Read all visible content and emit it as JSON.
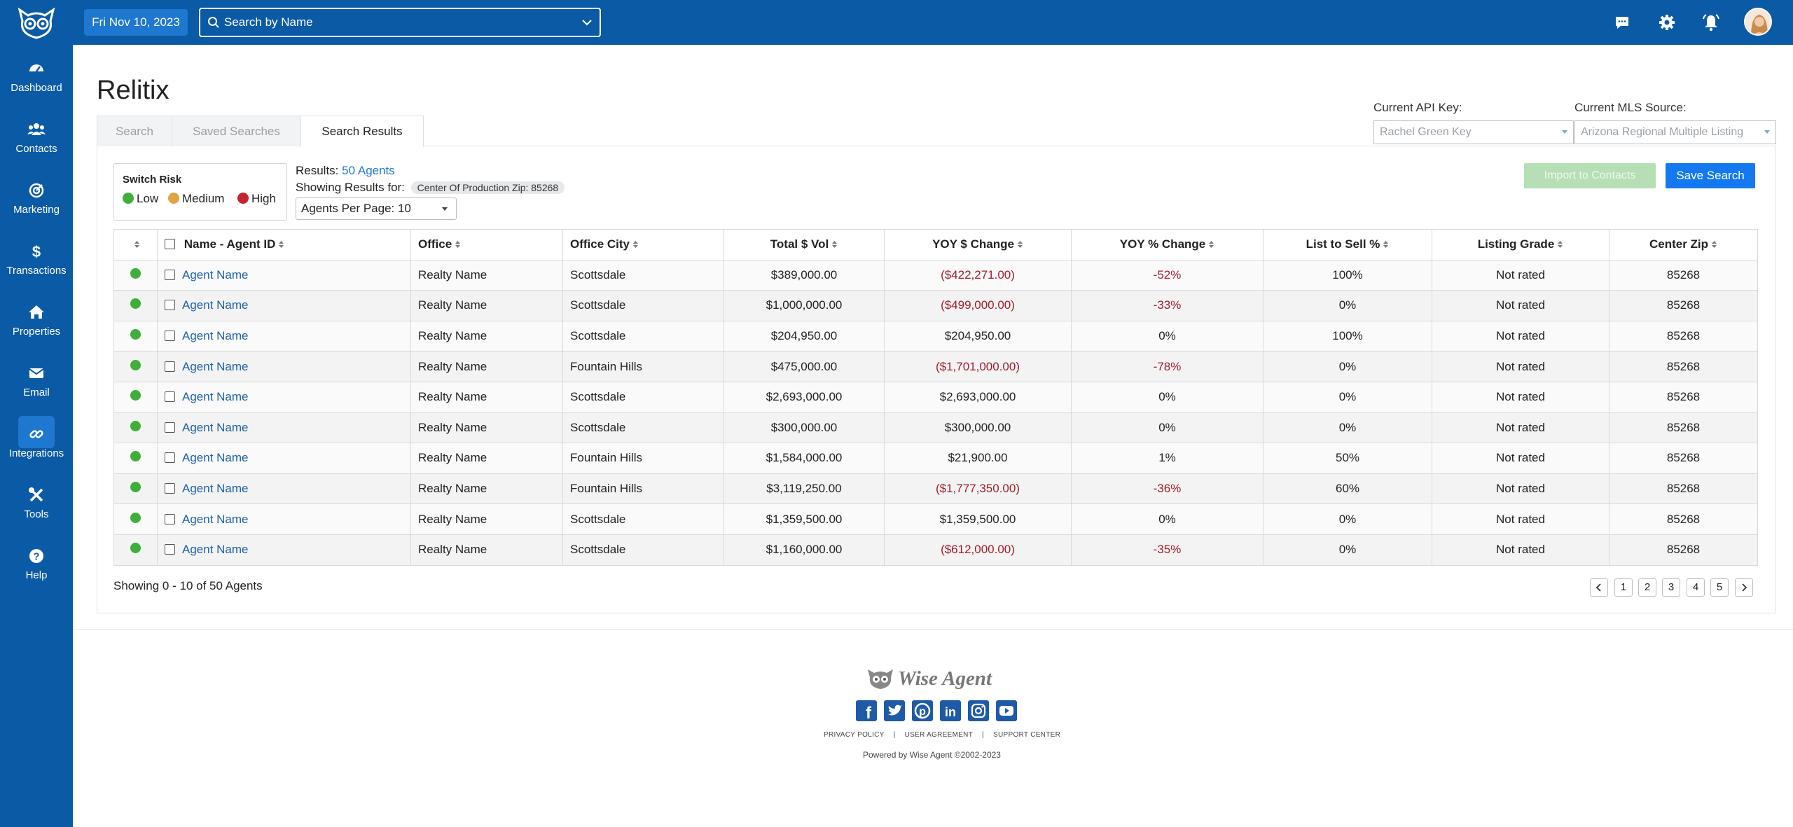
{
  "topbar": {
    "date": "Fri Nov 10, 2023",
    "search_placeholder": "Search by Name"
  },
  "sidebar": {
    "items": [
      {
        "label": "Dashboard",
        "icon": "dashboard-icon"
      },
      {
        "label": "Contacts",
        "icon": "contacts-icon"
      },
      {
        "label": "Marketing",
        "icon": "marketing-icon"
      },
      {
        "label": "Transactions",
        "icon": "dollar-icon"
      },
      {
        "label": "Properties",
        "icon": "home-icon"
      },
      {
        "label": "Email",
        "icon": "envelope-icon"
      },
      {
        "label": "Integrations",
        "icon": "link-icon"
      },
      {
        "label": "Tools",
        "icon": "tools-icon"
      },
      {
        "label": "Help",
        "icon": "help-icon"
      }
    ],
    "active": "Integrations"
  },
  "page": {
    "title": "Relitix",
    "tabs": [
      "Search",
      "Saved Searches",
      "Search Results"
    ],
    "active_tab": "Search Results",
    "api_key_label": "Current API Key:",
    "api_key_value": "Rachel Green Key",
    "mls_label": "Current MLS Source:",
    "mls_value": "Arizona Regional Multiple Listing"
  },
  "risk": {
    "title": "Switch Risk",
    "levels": [
      {
        "label": "Low",
        "color": "#3fae3a"
      },
      {
        "label": "Medium",
        "color": "#e0a544"
      },
      {
        "label": "High",
        "color": "#c4242f"
      }
    ]
  },
  "results": {
    "results_label": "Results:",
    "results_count": "50 Agents",
    "showing_label": "Showing Results for:",
    "filter_pill": "Center Of Production Zip: 85268",
    "per_page": "Agents Per Page: 10",
    "import_label": "Import to Contacts",
    "save_label": "Save Search"
  },
  "table": {
    "headers": [
      "Name - Agent ID",
      "Office",
      "Office City",
      "Total $ Vol",
      "YOY $ Change",
      "YOY % Change",
      "List to Sell %",
      "Listing Grade",
      "Center Zip"
    ],
    "rows": [
      {
        "name": "Agent Name",
        "office": "Realty Name",
        "city": "Scottsdale",
        "vol": "$389,000.00",
        "yoy": "($422,271.00)",
        "yoy_neg": true,
        "pct": "-52%",
        "pct_neg": true,
        "lts": "100%",
        "grade": "Not rated",
        "zip": "85268"
      },
      {
        "name": "Agent Name",
        "office": "Realty Name",
        "city": "Scottsdale",
        "vol": "$1,000,000.00",
        "yoy": "($499,000.00)",
        "yoy_neg": true,
        "pct": "-33%",
        "pct_neg": true,
        "lts": "0%",
        "grade": "Not rated",
        "zip": "85268"
      },
      {
        "name": "Agent Name",
        "office": "Realty Name",
        "city": "Scottsdale",
        "vol": "$204,950.00",
        "yoy": "$204,950.00",
        "yoy_neg": false,
        "pct": "0%",
        "pct_neg": false,
        "lts": "100%",
        "grade": "Not rated",
        "zip": "85268"
      },
      {
        "name": "Agent Name",
        "office": "Realty Name",
        "city": "Fountain Hills",
        "vol": "$475,000.00",
        "yoy": "($1,701,000.00)",
        "yoy_neg": true,
        "pct": "-78%",
        "pct_neg": true,
        "lts": "0%",
        "grade": "Not rated",
        "zip": "85268"
      },
      {
        "name": "Agent Name",
        "office": "Realty Name",
        "city": "Scottsdale",
        "vol": "$2,693,000.00",
        "yoy": "$2,693,000.00",
        "yoy_neg": false,
        "pct": "0%",
        "pct_neg": false,
        "lts": "0%",
        "grade": "Not rated",
        "zip": "85268"
      },
      {
        "name": "Agent Name",
        "office": "Realty Name",
        "city": "Scottsdale",
        "vol": "$300,000.00",
        "yoy": "$300,000.00",
        "yoy_neg": false,
        "pct": "0%",
        "pct_neg": false,
        "lts": "0%",
        "grade": "Not rated",
        "zip": "85268"
      },
      {
        "name": "Agent Name",
        "office": "Realty Name",
        "city": "Fountain Hills",
        "vol": "$1,584,000.00",
        "yoy": "$21,900.00",
        "yoy_neg": false,
        "pct": "1%",
        "pct_neg": false,
        "lts": "50%",
        "grade": "Not rated",
        "zip": "85268"
      },
      {
        "name": "Agent Name",
        "office": "Realty Name",
        "city": "Fountain Hills",
        "vol": "$3,119,250.00",
        "yoy": "($1,777,350.00)",
        "yoy_neg": true,
        "pct": "-36%",
        "pct_neg": true,
        "lts": "60%",
        "grade": "Not rated",
        "zip": "85268"
      },
      {
        "name": "Agent Name",
        "office": "Realty Name",
        "city": "Scottsdale",
        "vol": "$1,359,500.00",
        "yoy": "$1,359,500.00",
        "yoy_neg": false,
        "pct": "0%",
        "pct_neg": false,
        "lts": "0%",
        "grade": "Not rated",
        "zip": "85268"
      },
      {
        "name": "Agent Name",
        "office": "Realty Name",
        "city": "Scottsdale",
        "vol": "$1,160,000.00",
        "yoy": "($612,000.00)",
        "yoy_neg": true,
        "pct": "-35%",
        "pct_neg": true,
        "lts": "0%",
        "grade": "Not rated",
        "zip": "85268"
      }
    ],
    "footer_text": "Showing 0 - 10 of 50 Agents",
    "pages": [
      "1",
      "2",
      "3",
      "4",
      "5"
    ]
  },
  "footer": {
    "brand": "Wise Agent",
    "social": [
      "facebook-icon",
      "twitter-icon",
      "pinterest-icon",
      "linkedin-icon",
      "instagram-icon",
      "youtube-icon"
    ],
    "links": [
      "PRIVACY POLICY",
      "USER AGREEMENT",
      "SUPPORT CENTER"
    ],
    "powered": "Powered by Wise Agent ©2002-2023"
  }
}
